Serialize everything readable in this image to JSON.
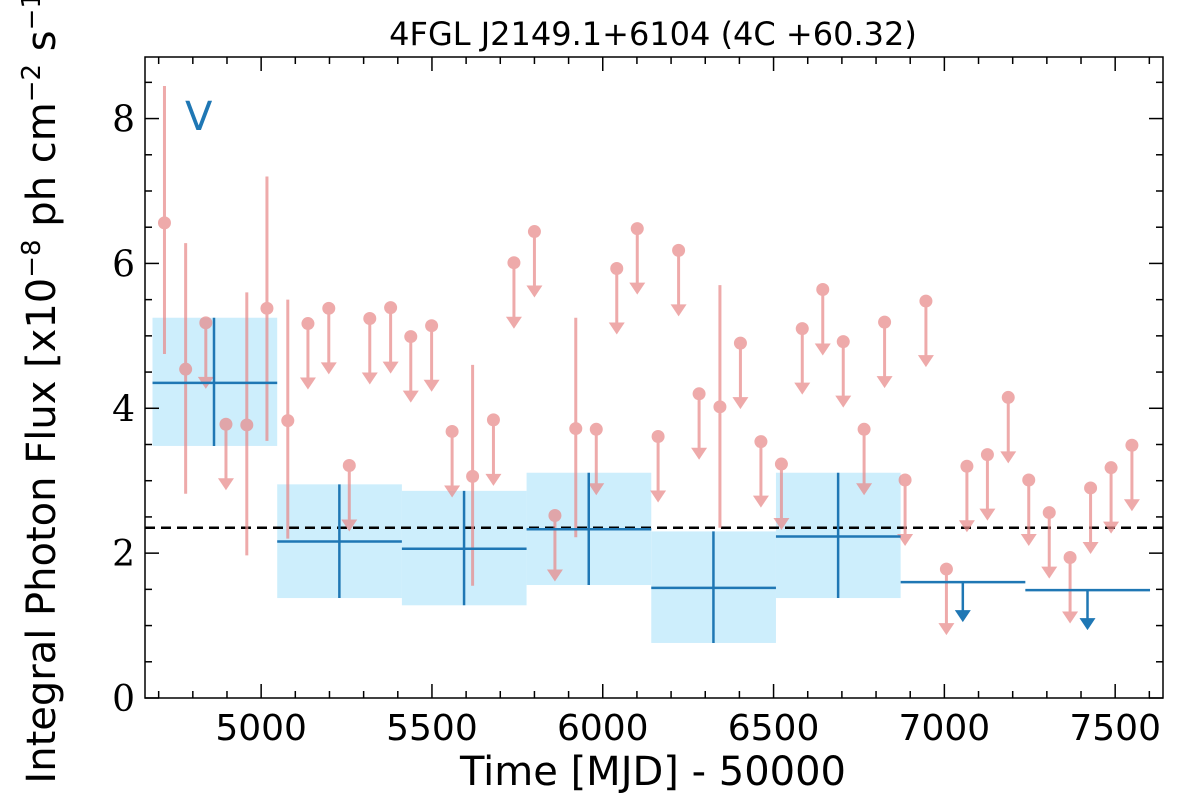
{
  "chart_data": {
    "type": "scatter",
    "title": "4FGL J2149.1+6104 (4C +60.32)",
    "panel_label": "V",
    "xlabel": "Time [MJD] - 50000",
    "ylabel_prefix": "Integral Photon Flux [x10",
    "ylabel_exp1": "−8",
    "ylabel_mid": " ph cm",
    "ylabel_exp2": "−2",
    "ylabel_mid2": " s",
    "ylabel_exp3": "−1",
    "ylabel_suffix": "]",
    "xlim": [
      4660,
      7640
    ],
    "ylim": [
      0,
      8.85
    ],
    "x_ticks": [
      5000,
      5500,
      6000,
      6500,
      7000,
      7500
    ],
    "y_ticks": [
      0,
      2,
      4,
      6,
      8
    ],
    "reference_line": 2.35,
    "colors": {
      "fine": "#e88a8a",
      "coarse": "#1f77b4",
      "band": "#cdeefc",
      "reference": "#000000"
    },
    "coarse_bins": [
      {
        "x0": 4682,
        "x1": 5047,
        "y": 4.35,
        "lo": 3.48,
        "hi": 5.25,
        "ul": false,
        "center": 4862
      },
      {
        "x0": 5047,
        "x1": 5412,
        "y": 2.16,
        "lo": 1.38,
        "hi": 2.95,
        "ul": false,
        "center": 5229
      },
      {
        "x0": 5412,
        "x1": 5777,
        "y": 2.06,
        "lo": 1.28,
        "hi": 2.86,
        "ul": false,
        "center": 5594
      },
      {
        "x0": 5777,
        "x1": 6142,
        "y": 2.33,
        "lo": 1.56,
        "hi": 3.11,
        "ul": false,
        "center": 5959
      },
      {
        "x0": 6142,
        "x1": 6507,
        "y": 1.52,
        "lo": 0.76,
        "hi": 2.3,
        "ul": false,
        "center": 6324
      },
      {
        "x0": 6507,
        "x1": 6872,
        "y": 2.23,
        "lo": 1.38,
        "hi": 3.11,
        "ul": false,
        "center": 6689
      },
      {
        "x0": 6872,
        "x1": 7237,
        "y": 1.6,
        "ul": true,
        "center": 7054
      },
      {
        "x0": 7237,
        "x1": 7602,
        "y": 1.49,
        "ul": true,
        "center": 7419
      }
    ],
    "fine_points": [
      {
        "x": 4717,
        "y": 6.56,
        "lo": 4.75,
        "hi": 8.45,
        "ul": false
      },
      {
        "x": 4779,
        "y": 4.54,
        "lo": 2.82,
        "hi": 6.28,
        "ul": false
      },
      {
        "x": 4838,
        "y": 5.18,
        "ul": true
      },
      {
        "x": 4897,
        "y": 3.78,
        "ul": true
      },
      {
        "x": 4958,
        "y": 3.77,
        "lo": 1.97,
        "hi": 5.6,
        "ul": false
      },
      {
        "x": 5017,
        "y": 5.38,
        "lo": 3.55,
        "hi": 7.2,
        "ul": false
      },
      {
        "x": 5078,
        "y": 3.83,
        "lo": 2.2,
        "hi": 5.5,
        "ul": false
      },
      {
        "x": 5137,
        "y": 5.17,
        "ul": true
      },
      {
        "x": 5198,
        "y": 5.38,
        "ul": true
      },
      {
        "x": 5258,
        "y": 3.21,
        "ul": true
      },
      {
        "x": 5318,
        "y": 5.24,
        "ul": true
      },
      {
        "x": 5379,
        "y": 5.39,
        "ul": true
      },
      {
        "x": 5438,
        "y": 4.99,
        "ul": true
      },
      {
        "x": 5499,
        "y": 5.14,
        "ul": true
      },
      {
        "x": 5559,
        "y": 3.68,
        "ul": true
      },
      {
        "x": 5619,
        "y": 3.06,
        "lo": 1.55,
        "hi": 4.6,
        "ul": false
      },
      {
        "x": 5680,
        "y": 3.84,
        "ul": true
      },
      {
        "x": 5740,
        "y": 6.01,
        "ul": true
      },
      {
        "x": 5800,
        "y": 6.44,
        "ul": true
      },
      {
        "x": 5860,
        "y": 2.52,
        "ul": true
      },
      {
        "x": 5921,
        "y": 3.72,
        "lo": 2.22,
        "hi": 5.25,
        "ul": false
      },
      {
        "x": 5981,
        "y": 3.71,
        "ul": true
      },
      {
        "x": 6041,
        "y": 5.93,
        "ul": true
      },
      {
        "x": 6101,
        "y": 6.48,
        "ul": true
      },
      {
        "x": 6162,
        "y": 3.61,
        "ul": true
      },
      {
        "x": 6222,
        "y": 6.18,
        "ul": true
      },
      {
        "x": 6282,
        "y": 4.2,
        "ul": true
      },
      {
        "x": 6343,
        "y": 4.02,
        "lo": 2.35,
        "hi": 5.7,
        "ul": false
      },
      {
        "x": 6403,
        "y": 4.9,
        "ul": true
      },
      {
        "x": 6463,
        "y": 3.54,
        "ul": true
      },
      {
        "x": 6523,
        "y": 3.23,
        "ul": true
      },
      {
        "x": 6584,
        "y": 5.1,
        "ul": true
      },
      {
        "x": 6644,
        "y": 5.64,
        "ul": true
      },
      {
        "x": 6704,
        "y": 4.92,
        "ul": true
      },
      {
        "x": 6765,
        "y": 3.71,
        "ul": true
      },
      {
        "x": 6825,
        "y": 5.19,
        "ul": true
      },
      {
        "x": 6885,
        "y": 3.01,
        "ul": true
      },
      {
        "x": 6946,
        "y": 5.48,
        "ul": true
      },
      {
        "x": 7006,
        "y": 1.78,
        "ul": true
      },
      {
        "x": 7066,
        "y": 3.2,
        "ul": true
      },
      {
        "x": 7126,
        "y": 3.36,
        "ul": true
      },
      {
        "x": 7187,
        "y": 4.15,
        "ul": true
      },
      {
        "x": 7247,
        "y": 3.01,
        "ul": true
      },
      {
        "x": 7307,
        "y": 2.56,
        "ul": true
      },
      {
        "x": 7368,
        "y": 1.94,
        "ul": true
      },
      {
        "x": 7428,
        "y": 2.9,
        "ul": true
      },
      {
        "x": 7488,
        "y": 3.18,
        "ul": true
      },
      {
        "x": 7549,
        "y": 3.49,
        "ul": true
      }
    ]
  }
}
